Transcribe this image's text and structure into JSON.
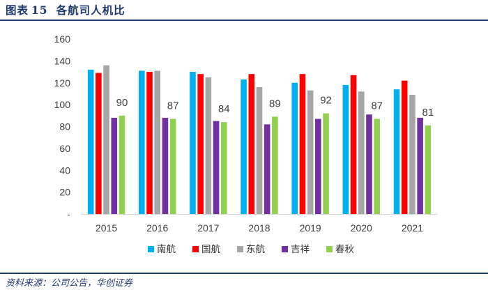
{
  "header": {
    "figure_label": "图表",
    "figure_number": "15",
    "title": "各航司人机比"
  },
  "footer": {
    "source": "资料来源：公司公告，华创证券"
  },
  "chart_data": {
    "type": "bar",
    "title": "各航司人机比",
    "xlabel": "",
    "ylabel": "",
    "ylim": [
      0,
      160
    ],
    "yticks": [
      0,
      20,
      40,
      60,
      80,
      100,
      120,
      140,
      160
    ],
    "ytick_labels": [
      "-",
      "20",
      "40",
      "60",
      "80",
      "100",
      "120",
      "140",
      "160"
    ],
    "categories": [
      "2015",
      "2016",
      "2017",
      "2018",
      "2019",
      "2020",
      "2021"
    ],
    "legend_position": "bottom",
    "grid": false,
    "series": [
      {
        "name": "南航",
        "color": "#00b0f0",
        "values": [
          132,
          131,
          130,
          123,
          120,
          118,
          114
        ]
      },
      {
        "name": "国航",
        "color": "#ff0000",
        "values": [
          129,
          130,
          128,
          128,
          128,
          127,
          122
        ]
      },
      {
        "name": "东航",
        "color": "#a6a6a6",
        "values": [
          136,
          131,
          125,
          116,
          113,
          112,
          109
        ]
      },
      {
        "name": "吉祥",
        "color": "#7030a0",
        "values": [
          88,
          88,
          85,
          82,
          87,
          91,
          88
        ]
      },
      {
        "name": "春秋",
        "color": "#92d050",
        "values": [
          90,
          87,
          84,
          89,
          92,
          87,
          81
        ]
      }
    ],
    "data_labels": {
      "series": "春秋",
      "values": [
        "90",
        "87",
        "84",
        "89",
        "92",
        "87",
        "81"
      ]
    }
  }
}
